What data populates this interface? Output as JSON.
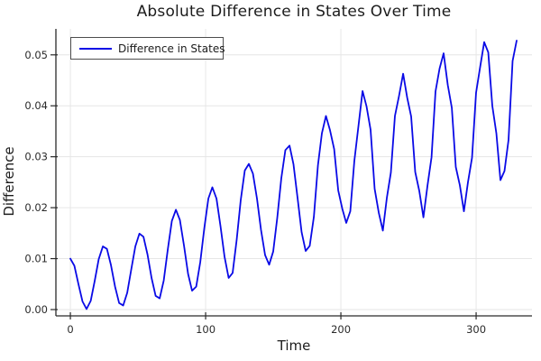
{
  "colors": {
    "series_blue": "#0a0ae6",
    "grid": "#e6e6e6",
    "spine": "#2a2a2a",
    "tick_text": "#2b2b2b",
    "text": "#1c1c1c",
    "legend_border": "#4d4d4d",
    "background": "#ffffff"
  },
  "legend": {
    "position": "top-left"
  },
  "chart_data": {
    "type": "line",
    "title": "Absolute Difference in States Over Time",
    "xlabel": "Time",
    "ylabel": "Difference",
    "xlim": [
      -10.7,
      341.3
    ],
    "ylim": [
      -0.00124,
      0.0551
    ],
    "x_ticks": [
      0,
      100,
      200,
      300
    ],
    "y_ticks": [
      0.0,
      0.01,
      0.02,
      0.03,
      0.04,
      0.05
    ],
    "grid": true,
    "legend_position": "top-left",
    "series": [
      {
        "name": "Difference in States",
        "color": "#0a0ae6",
        "x": [
          0,
          3,
          6,
          9,
          12,
          15,
          18,
          21,
          24,
          27,
          30,
          33,
          36,
          39,
          42,
          45,
          48,
          51,
          54,
          57,
          60,
          63,
          66,
          69,
          72,
          75,
          78,
          81,
          84,
          87,
          90,
          93,
          96,
          99,
          102,
          105,
          108,
          111,
          114,
          117,
          120,
          123,
          126,
          129,
          132,
          135,
          138,
          141,
          144,
          147,
          150,
          153,
          156,
          159,
          162,
          165,
          168,
          171,
          174,
          177,
          180,
          183,
          186,
          189,
          192,
          195,
          198,
          201,
          204,
          207,
          210,
          213,
          216,
          219,
          222,
          225,
          228,
          231,
          234,
          237,
          240,
          243,
          246,
          249,
          252,
          255,
          258,
          261,
          264,
          267,
          270,
          273,
          276,
          279,
          282,
          285,
          288,
          291,
          294,
          297,
          300,
          303,
          306,
          309,
          312,
          315,
          318,
          321,
          324,
          327,
          330
        ],
        "y": [
          0.01,
          0.0086,
          0.005,
          0.0016,
          0.0001,
          0.0017,
          0.0056,
          0.0099,
          0.0124,
          0.0119,
          0.0087,
          0.0045,
          0.0013,
          0.0008,
          0.0033,
          0.0079,
          0.0124,
          0.0149,
          0.0143,
          0.0108,
          0.0062,
          0.0027,
          0.0022,
          0.0057,
          0.0118,
          0.0174,
          0.0196,
          0.0176,
          0.0125,
          0.007,
          0.0037,
          0.0045,
          0.0093,
          0.016,
          0.0218,
          0.024,
          0.0218,
          0.0163,
          0.0104,
          0.0062,
          0.0072,
          0.0137,
          0.0215,
          0.0273,
          0.0286,
          0.0267,
          0.0218,
          0.0156,
          0.0107,
          0.0088,
          0.0114,
          0.018,
          0.0258,
          0.0313,
          0.0322,
          0.0285,
          0.0218,
          0.0152,
          0.0115,
          0.0125,
          0.0182,
          0.0283,
          0.0346,
          0.038,
          0.0352,
          0.0315,
          0.0234,
          0.0198,
          0.017,
          0.0193,
          0.0292,
          0.0361,
          0.0429,
          0.0399,
          0.0353,
          0.0237,
          0.019,
          0.0155,
          0.022,
          0.0269,
          0.038,
          0.0419,
          0.0463,
          0.0416,
          0.0379,
          0.027,
          0.0233,
          0.0181,
          0.0243,
          0.0299,
          0.0428,
          0.0473,
          0.0503,
          0.0441,
          0.0396,
          0.028,
          0.0244,
          0.0193,
          0.025,
          0.0298,
          0.0426,
          0.0476,
          0.0525,
          0.0505,
          0.04,
          0.0346,
          0.0254,
          0.0272,
          0.0333,
          0.0488,
          0.0528
        ]
      }
    ]
  }
}
